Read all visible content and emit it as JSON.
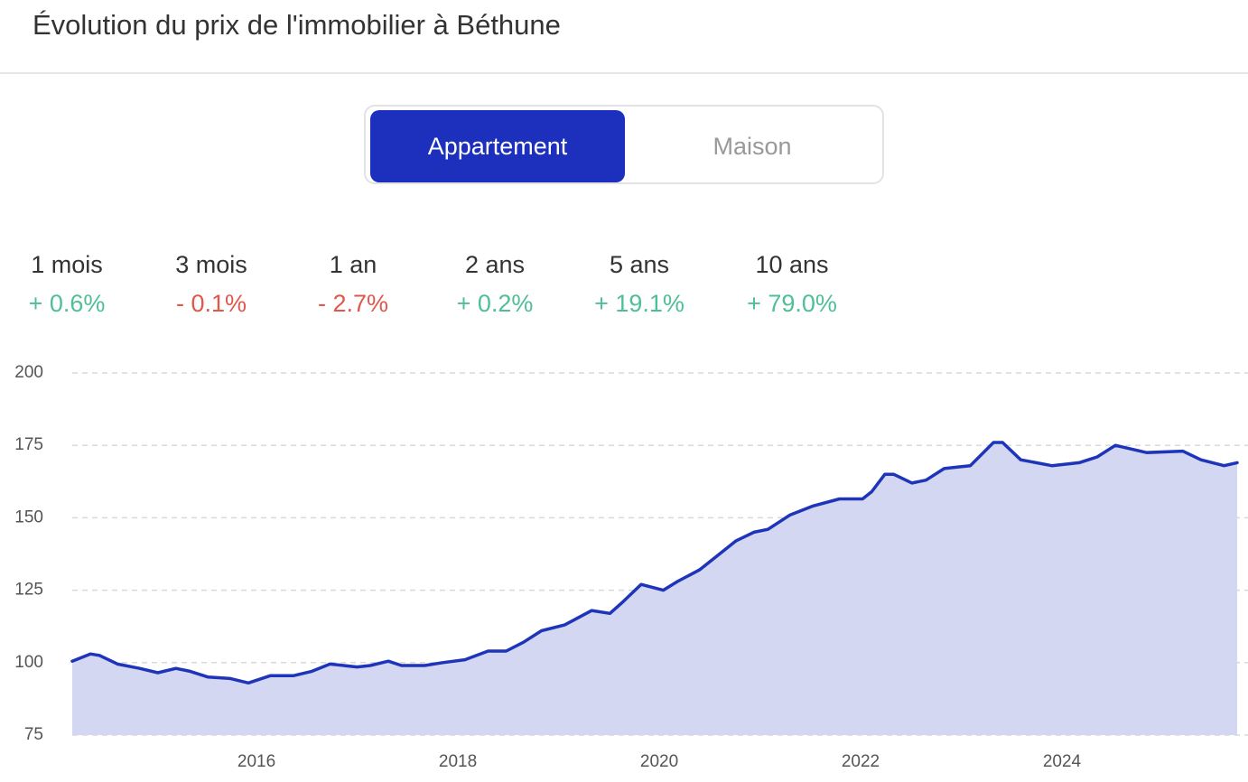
{
  "header": {
    "title": "Évolution du prix de l'immobilier à Béthune"
  },
  "toggle": {
    "options": [
      "Appartement",
      "Maison"
    ],
    "selected": 0
  },
  "stats": [
    {
      "period": "1 mois",
      "change": "+ 0.6%",
      "color": "#4fbf95"
    },
    {
      "period": "3 mois",
      "change": "- 0.1%",
      "color": "#e0574b"
    },
    {
      "period": "1 an",
      "change": "- 2.7%",
      "color": "#e0574b"
    },
    {
      "period": "2 ans",
      "change": "+ 0.2%",
      "color": "#4fbf95"
    },
    {
      "period": "5 ans",
      "change": "+ 19.1%",
      "color": "#4fbf95"
    },
    {
      "period": "10 ans",
      "change": "+ 79.0%",
      "color": "#4fbf95"
    }
  ],
  "chart_data": {
    "type": "area",
    "x": [
      2014.17,
      2014.35,
      2014.44,
      2014.62,
      2014.84,
      2015.02,
      2015.2,
      2015.34,
      2015.52,
      2015.74,
      2015.92,
      2016.14,
      2016.37,
      2016.55,
      2016.73,
      2017.0,
      2017.13,
      2017.31,
      2017.44,
      2017.67,
      2017.85,
      2018.07,
      2018.3,
      2018.48,
      2018.65,
      2018.83,
      2019.06,
      2019.33,
      2019.51,
      2019.64,
      2019.82,
      2020.04,
      2020.18,
      2020.4,
      2020.58,
      2020.76,
      2020.94,
      2021.08,
      2021.3,
      2021.52,
      2021.79,
      2022.02,
      2022.11,
      2022.24,
      2022.33,
      2022.51,
      2022.65,
      2022.83,
      2022.96,
      2023.09,
      2023.32,
      2023.41,
      2023.59,
      2023.9,
      2024.17,
      2024.35,
      2024.53,
      2024.84,
      2025.2,
      2025.38,
      2025.61,
      2025.74
    ],
    "values": [
      100.5,
      103,
      102.5,
      99.5,
      98,
      96.5,
      98,
      97,
      95,
      94.5,
      93,
      95.5,
      95.5,
      97,
      99.5,
      98.5,
      99,
      100.5,
      99,
      99,
      100,
      101,
      104,
      104,
      107,
      111,
      113,
      118,
      117,
      121,
      127,
      125,
      128,
      132,
      137,
      142,
      145,
      146,
      151,
      154,
      156.5,
      156.5,
      159,
      165,
      165,
      162,
      163,
      167,
      167.5,
      168,
      176,
      176,
      170,
      168,
      169,
      171,
      175,
      172.5,
      173,
      170,
      168,
      169
    ],
    "color": "#1f35b9",
    "fill": "#d3d7f1",
    "xlim": [
      2014.17,
      2025.74
    ],
    "xticks": [
      2016,
      2018,
      2020,
      2022,
      2024
    ],
    "ylim": [
      75,
      200
    ],
    "yticks": [
      75,
      100,
      125,
      150,
      175,
      200
    ],
    "grid": true
  }
}
